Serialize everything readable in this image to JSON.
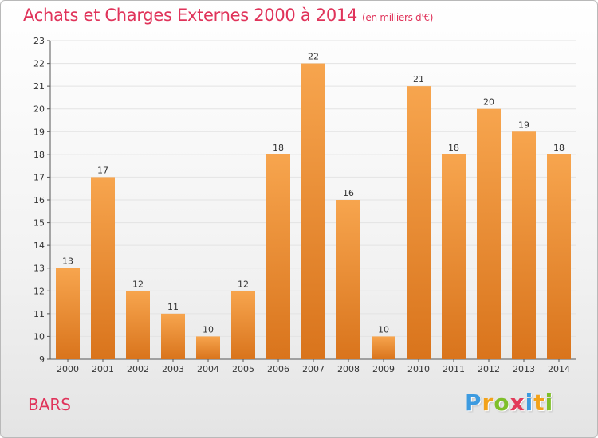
{
  "header": {
    "title": "Achats et Charges Externes 2000 à 2014",
    "subtitle": "(en milliers d'€)"
  },
  "footer": {
    "place": "BARS",
    "logo_letters": [
      "P",
      "r",
      "o",
      "x",
      "i",
      "t",
      "i"
    ],
    "logo_colors": [
      "#3d9be0",
      "#f2a21a",
      "#7fbf2a",
      "#e23b5a",
      "#3d9be0",
      "#f2a21a",
      "#7fbf2a"
    ]
  },
  "colors": {
    "bar_top": "#f7a54e",
    "bar_bottom": "#d9741c",
    "axis": "#555555",
    "grid": "#e3e3e3"
  },
  "chart_data": {
    "type": "bar",
    "categories": [
      "2000",
      "2001",
      "2002",
      "2003",
      "2004",
      "2005",
      "2006",
      "2007",
      "2008",
      "2009",
      "2010",
      "2011",
      "2012",
      "2013",
      "2014"
    ],
    "values": [
      13,
      17,
      12,
      11,
      10,
      12,
      18,
      22,
      16,
      10,
      21,
      18,
      20,
      19,
      18
    ],
    "ylim": [
      9,
      23
    ],
    "yticks": [
      9,
      10,
      11,
      12,
      13,
      14,
      15,
      16,
      17,
      18,
      19,
      20,
      21,
      22,
      23
    ],
    "grid": true
  }
}
